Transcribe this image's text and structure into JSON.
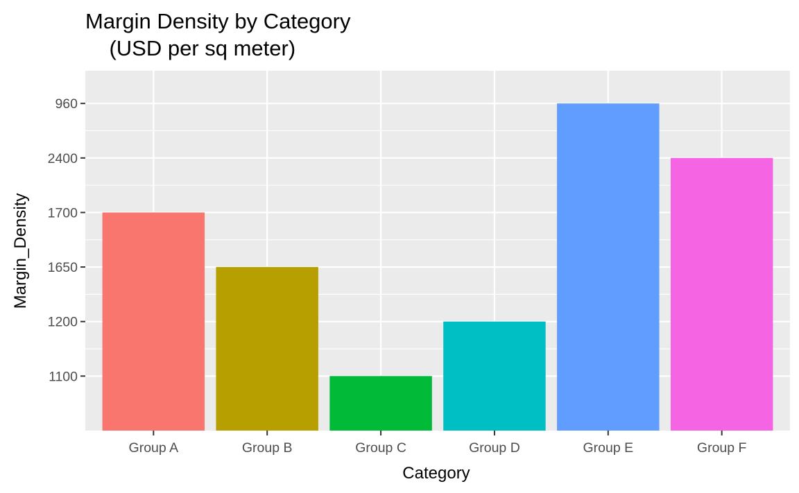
{
  "chart_data": {
    "type": "bar",
    "title_lines": [
      "Margin Density by Category",
      "    (USD per sq meter)"
    ],
    "xlabel": "Category",
    "ylabel": "Margin_Density",
    "categories": [
      "Group A",
      "Group B",
      "Group C",
      "Group D",
      "Group E",
      "Group F"
    ],
    "values": [
      "1700",
      "1650",
      "1100",
      "1200",
      "960",
      "2400"
    ],
    "y_axis_kind": "discrete-ordered-labels",
    "y_ticks": [
      "1100",
      "1200",
      "1650",
      "1700",
      "2400",
      "960"
    ],
    "colors": [
      "#F8766D",
      "#B79F00",
      "#00BA38",
      "#00BFC4",
      "#619CFF",
      "#F564E3"
    ],
    "panel_background": "#EBEBEB",
    "grid": true,
    "legend": "none"
  }
}
